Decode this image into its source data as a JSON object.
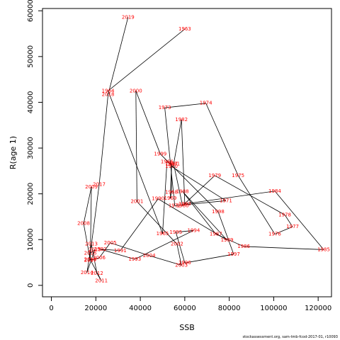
{
  "chart_data": {
    "type": "scatter",
    "xlabel": "SSB",
    "ylabel": "R(age 1)",
    "xlim": [
      -4000,
      126000
    ],
    "ylim": [
      -2500,
      60500
    ],
    "xticks": [
      0,
      20000,
      40000,
      60000,
      80000,
      100000,
      120000
    ],
    "yticks": [
      0,
      10000,
      20000,
      30000,
      40000,
      50000,
      60000
    ],
    "connected_in_year_order": true,
    "line_color": "#000000",
    "label_color": "#ff0000",
    "points": [
      {
        "year": "1963",
        "x": 60000,
        "y": 56000
      },
      {
        "year": "1964",
        "x": 25500,
        "y": 42500
      },
      {
        "year": "1965",
        "x": 50000,
        "y": 11300
      },
      {
        "year": "1966",
        "x": 52000,
        "y": 27000
      },
      {
        "year": "1967",
        "x": 54000,
        "y": 26500
      },
      {
        "year": "1968",
        "x": 54000,
        "y": 20300
      },
      {
        "year": "1969",
        "x": 53500,
        "y": 19000
      },
      {
        "year": "1970",
        "x": 54000,
        "y": 26000
      },
      {
        "year": "1971",
        "x": 78500,
        "y": 18500
      },
      {
        "year": "1972",
        "x": 55500,
        "y": 17400
      },
      {
        "year": "1973",
        "x": 51000,
        "y": 38800
      },
      {
        "year": "1974",
        "x": 69500,
        "y": 39800
      },
      {
        "year": "1975",
        "x": 84000,
        "y": 24000
      },
      {
        "year": "1976",
        "x": 100500,
        "y": 11200
      },
      {
        "year": "1977",
        "x": 108500,
        "y": 12800
      },
      {
        "year": "1978",
        "x": 105000,
        "y": 15400
      },
      {
        "year": "1979",
        "x": 73500,
        "y": 24000
      },
      {
        "year": "1980",
        "x": 59000,
        "y": 17400
      },
      {
        "year": "1981",
        "x": 55000,
        "y": 26500
      },
      {
        "year": "1982",
        "x": 58500,
        "y": 36200
      },
      {
        "year": "1983",
        "x": 60000,
        "y": 17800
      },
      {
        "year": "1984",
        "x": 100500,
        "y": 20600
      },
      {
        "year": "1985",
        "x": 122500,
        "y": 7800
      },
      {
        "year": "1986",
        "x": 86500,
        "y": 8500
      },
      {
        "year": "1987",
        "x": 74000,
        "y": 11200
      },
      {
        "year": "1988",
        "x": 59000,
        "y": 20500
      },
      {
        "year": "1989",
        "x": 79000,
        "y": 9900
      },
      {
        "year": "1990",
        "x": 48000,
        "y": 18900
      },
      {
        "year": "1991",
        "x": 31000,
        "y": 7600
      },
      {
        "year": "1992",
        "x": 22000,
        "y": 7900
      },
      {
        "year": "1993",
        "x": 37500,
        "y": 5700
      },
      {
        "year": "1994",
        "x": 64000,
        "y": 12000
      },
      {
        "year": "1995",
        "x": 56000,
        "y": 11600
      },
      {
        "year": "1996",
        "x": 60000,
        "y": 4900
      },
      {
        "year": "1997",
        "x": 82000,
        "y": 6800
      },
      {
        "year": "1998",
        "x": 75000,
        "y": 16100
      },
      {
        "year": "1999",
        "x": 49000,
        "y": 28700
      },
      {
        "year": "2000",
        "x": 38000,
        "y": 42500
      },
      {
        "year": "2001",
        "x": 38500,
        "y": 18300
      },
      {
        "year": "2002",
        "x": 56500,
        "y": 9000
      },
      {
        "year": "2003",
        "x": 58500,
        "y": 4400
      },
      {
        "year": "2004",
        "x": 44000,
        "y": 6500
      },
      {
        "year": "2005",
        "x": 26500,
        "y": 9300
      },
      {
        "year": "2006",
        "x": 21500,
        "y": 6000
      },
      {
        "year": "2007",
        "x": 17500,
        "y": 5500
      },
      {
        "year": "2008",
        "x": 14500,
        "y": 13500
      },
      {
        "year": "2009",
        "x": 18000,
        "y": 21500
      },
      {
        "year": "2010",
        "x": 17500,
        "y": 5600
      },
      {
        "year": "2011",
        "x": 22500,
        "y": 1000
      },
      {
        "year": "2012",
        "x": 20500,
        "y": 2600
      },
      {
        "year": "2013",
        "x": 18000,
        "y": 9000
      },
      {
        "year": "2014",
        "x": 16000,
        "y": 2800
      },
      {
        "year": "2015",
        "x": 19500,
        "y": 7800
      },
      {
        "year": "2016",
        "x": 17500,
        "y": 7000
      },
      {
        "year": "2017",
        "x": 21500,
        "y": 22000
      },
      {
        "year": "2018",
        "x": 25500,
        "y": 41700
      },
      {
        "year": "2019",
        "x": 34500,
        "y": 58600
      }
    ]
  },
  "footer_text": "stockassessment.org, sam-tmb-fcod-2017-01, r10093"
}
